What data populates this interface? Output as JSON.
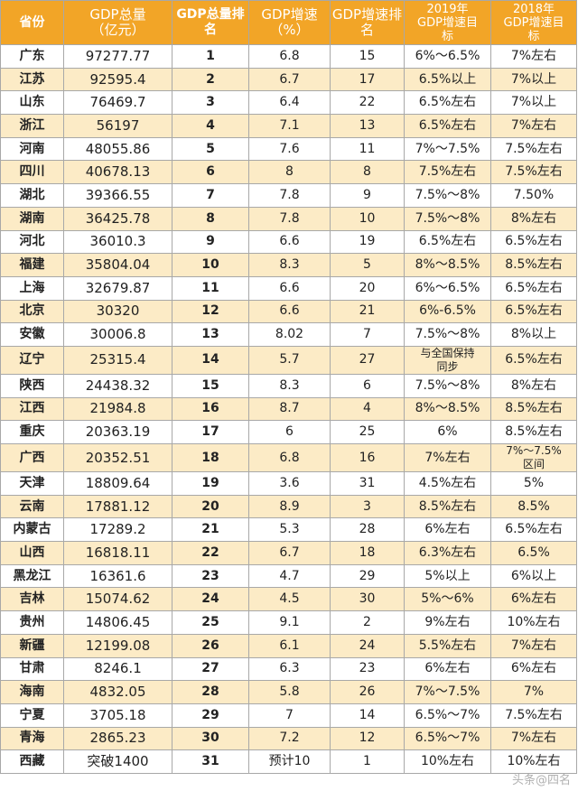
{
  "headers": [
    "省份",
    "GDP总量\n（亿元）",
    "GDP总量排\n名",
    "GDP增速\n（%）",
    "GDP增速排\n名",
    "2019年\nGDP增速目\n标",
    "2018年\nGDP增速目\n标"
  ],
  "rows": [
    [
      "广东",
      "97277.77",
      "1",
      "6.8",
      "15",
      "6%～6.5%",
      "7%左右"
    ],
    [
      "江苏",
      "92595.4",
      "2",
      "6.7",
      "17",
      "6.5%以上",
      "7%以上"
    ],
    [
      "山东",
      "76469.7",
      "3",
      "6.4",
      "22",
      "6.5%左右",
      "7%以上"
    ],
    [
      "浙江",
      "56197",
      "4",
      "7.1",
      "13",
      "6.5%左右",
      "7%左右"
    ],
    [
      "河南",
      "48055.86",
      "5",
      "7.6",
      "11",
      "7%～7.5%",
      "7.5%左右"
    ],
    [
      "四川",
      "40678.13",
      "6",
      "8",
      "8",
      "7.5%左右",
      "7.5%左右"
    ],
    [
      "湖北",
      "39366.55",
      "7",
      "7.8",
      "9",
      "7.5%～8%",
      "7.50%"
    ],
    [
      "湖南",
      "36425.78",
      "8",
      "7.8",
      "10",
      "7.5%～8%",
      "8%左右"
    ],
    [
      "河北",
      "36010.3",
      "9",
      "6.6",
      "19",
      "6.5%左右",
      "6.5%左右"
    ],
    [
      "福建",
      "35804.04",
      "10",
      "8.3",
      "5",
      "8%～8.5%",
      "8.5%左右"
    ],
    [
      "上海",
      "32679.87",
      "11",
      "6.6",
      "20",
      "6%～6.5%",
      "6.5%左右"
    ],
    [
      "北京",
      "30320",
      "12",
      "6.6",
      "21",
      "6%-6.5%",
      "6.5%左右"
    ],
    [
      "安徽",
      "30006.8",
      "13",
      "8.02",
      "7",
      "7.5%～8%",
      "8%以上"
    ],
    [
      "辽宁",
      "25315.4",
      "14",
      "5.7",
      "27",
      "与全国保持\n同步",
      "6.5%左右"
    ],
    [
      "陕西",
      "24438.32",
      "15",
      "8.3",
      "6",
      "7.5%～8%",
      "8%左右"
    ],
    [
      "江西",
      "21984.8",
      "16",
      "8.7",
      "4",
      "8%～8.5%",
      "8.5%左右"
    ],
    [
      "重庆",
      "20363.19",
      "17",
      "6",
      "25",
      "6%",
      "8.5%左右"
    ],
    [
      "广西",
      "20352.51",
      "18",
      "6.8",
      "16",
      "7%左右",
      "7%～7.5%\n区间"
    ],
    [
      "天津",
      "18809.64",
      "19",
      "3.6",
      "31",
      "4.5%左右",
      "5%"
    ],
    [
      "云南",
      "17881.12",
      "20",
      "8.9",
      "3",
      "8.5%左右",
      "8.5%"
    ],
    [
      "内蒙古",
      "17289.2",
      "21",
      "5.3",
      "28",
      "6%左右",
      "6.5%左右"
    ],
    [
      "山西",
      "16818.11",
      "22",
      "6.7",
      "18",
      "6.3%左右",
      "6.5%"
    ],
    [
      "黑龙江",
      "16361.6",
      "23",
      "4.7",
      "29",
      "5%以上",
      "6%以上"
    ],
    [
      "吉林",
      "15074.62",
      "24",
      "4.5",
      "30",
      "5%～6%",
      "6%左右"
    ],
    [
      "贵州",
      "14806.45",
      "25",
      "9.1",
      "2",
      "9%左右",
      "10%左右"
    ],
    [
      "新疆",
      "12199.08",
      "26",
      "6.1",
      "24",
      "5.5%左右",
      "7%左右"
    ],
    [
      "甘肃",
      "8246.1",
      "27",
      "6.3",
      "23",
      "6%左右",
      "6%左右"
    ],
    [
      "海南",
      "4832.05",
      "28",
      "5.8",
      "26",
      "7%～7.5%",
      "7%"
    ],
    [
      "宁夏",
      "3705.18",
      "29",
      "7",
      "14",
      "6.5%～7%",
      "7.5%左右"
    ],
    [
      "青海",
      "2865.23",
      "30",
      "7.2",
      "12",
      "6.5%～7%",
      "7%左右"
    ],
    [
      "西藏",
      "突破1400",
      "31",
      "预计10",
      "1",
      "10%左右",
      "10%左右"
    ]
  ],
  "watermark": "头条@四名"
}
